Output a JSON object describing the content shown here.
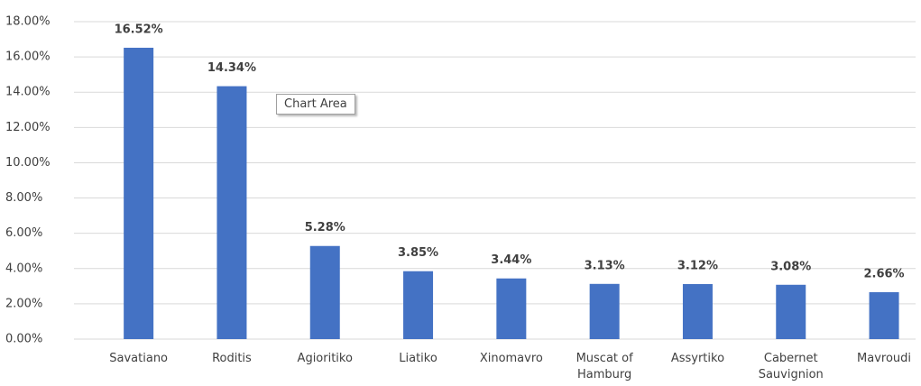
{
  "chart_data": {
    "type": "bar",
    "categories": [
      "Savatiano",
      "Roditis",
      "Agioritiko",
      "Liatiko",
      "Xinomavro",
      "Muscat of Hamburg",
      "Assyrtiko",
      "Cabernet Sauvignion",
      "Mavroudi"
    ],
    "values": [
      16.52,
      14.34,
      5.28,
      3.85,
      3.44,
      3.13,
      3.12,
      3.08,
      2.66
    ],
    "value_labels": [
      "16.52%",
      "14.34%",
      "5.28%",
      "3.85%",
      "3.44%",
      "3.13%",
      "3.12%",
      "3.08%",
      "2.66%"
    ],
    "color": "#4472c4",
    "ylim": [
      0,
      18
    ],
    "yticks": [
      {
        "value": 0,
        "label": "0.00%"
      },
      {
        "value": 2,
        "label": "2.00%"
      },
      {
        "value": 4,
        "label": "4.00%"
      },
      {
        "value": 6,
        "label": "6.00%"
      },
      {
        "value": 8,
        "label": "8.00%"
      },
      {
        "value": 10,
        "label": "10.00%"
      },
      {
        "value": 12,
        "label": "12.00%"
      },
      {
        "value": 14,
        "label": "14.00%"
      },
      {
        "value": 16,
        "label": "16.00%"
      },
      {
        "value": 18,
        "label": "18.00%"
      }
    ],
    "grid": true,
    "tooltip": "Chart Area"
  }
}
